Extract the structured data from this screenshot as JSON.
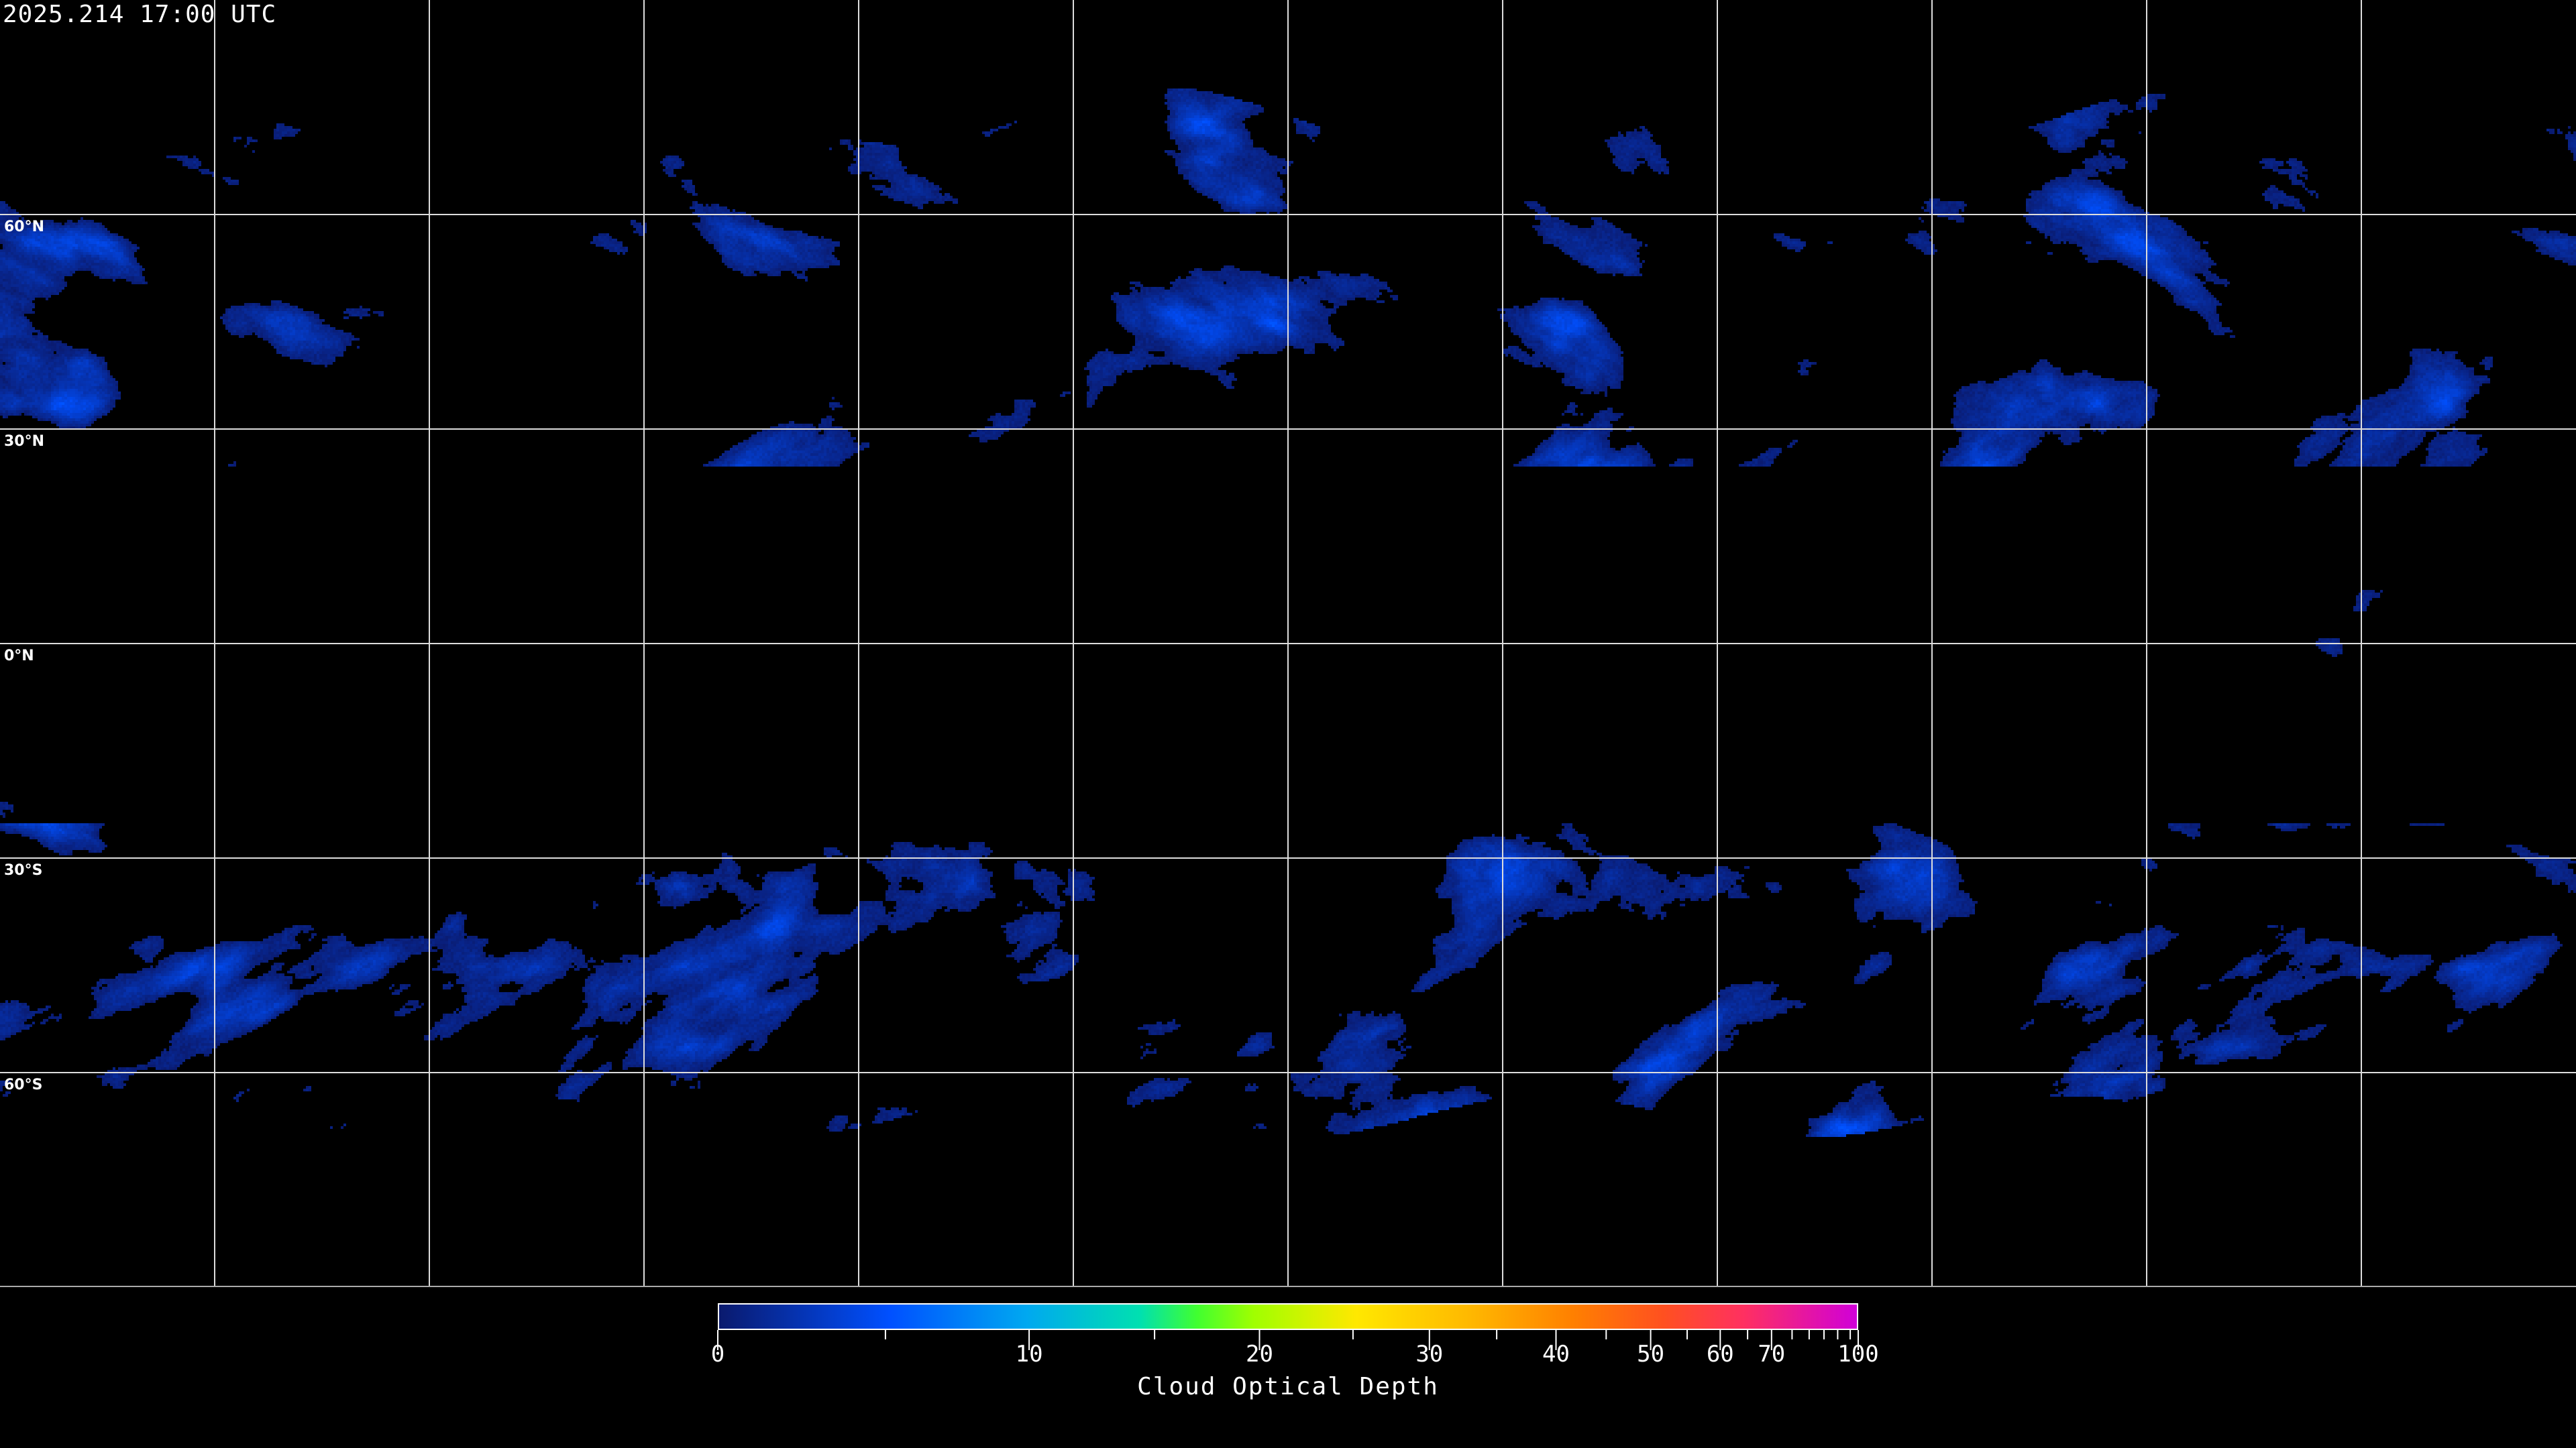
{
  "header": {
    "timestamp": "2025.214 17:00 UTC"
  },
  "map": {
    "projection": "equirectangular",
    "gridlines_deg": 30,
    "lat_labels": [
      "60°N",
      "30°N",
      "0°N",
      "30°S",
      "60°S"
    ],
    "coastline_color": "#ffffff",
    "background_color": "#000000"
  },
  "colorbar": {
    "label": "Cloud Optical Depth",
    "range": [
      0,
      100
    ],
    "tick_labels": [
      "0",
      "10",
      "20",
      "30",
      "40",
      "50",
      "60",
      "70",
      "100"
    ],
    "colors": [
      "#0a1a6e",
      "#0050ff",
      "#00a8f0",
      "#00e0b0",
      "#40ff30",
      "#a0ff00",
      "#ffe800",
      "#ffb800",
      "#ff8000",
      "#ff5020",
      "#ff3060",
      "#d000d8"
    ]
  }
}
